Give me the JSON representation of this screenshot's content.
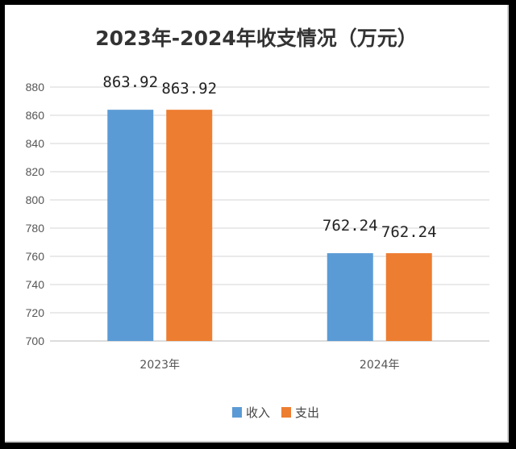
{
  "chart_data": {
    "type": "bar",
    "title": "2023年-2024年收支情况（万元）",
    "categories": [
      "2023年",
      "2024年"
    ],
    "series": [
      {
        "name": "收入",
        "color": "#5b9bd5",
        "values": [
          863.92,
          762.24
        ],
        "labels": [
          "863.92",
          "762.24"
        ]
      },
      {
        "name": "支出",
        "color": "#ed7d31",
        "values": [
          863.92,
          762.24
        ],
        "labels": [
          "863.92",
          "762.24"
        ]
      }
    ],
    "ylim": [
      700,
      880
    ],
    "yticks": [
      700,
      720,
      740,
      760,
      780,
      800,
      820,
      840,
      860,
      880
    ],
    "grid": true,
    "legend": "bottom",
    "xlabel": "",
    "ylabel": ""
  }
}
